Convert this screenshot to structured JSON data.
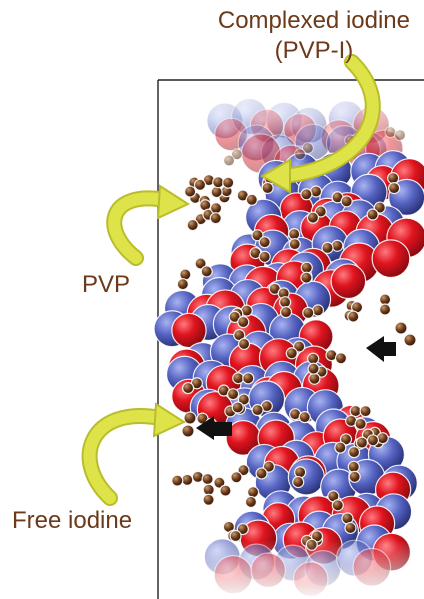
{
  "labels": {
    "complexed_line1": "Complexed iodine",
    "complexed_line2": "(PVP-I)",
    "pvp": "PVP",
    "free_iodine": "Free iodine"
  },
  "colors": {
    "text": "#6b3a1a",
    "arrow": "#dfe34a",
    "arrow_outline": "#b9bd2a",
    "oxygen": "#d8121d",
    "nitrogen_carbon": "#4a58b8",
    "iodine": "#6b3a1a",
    "direction_arrow": "#111111"
  }
}
